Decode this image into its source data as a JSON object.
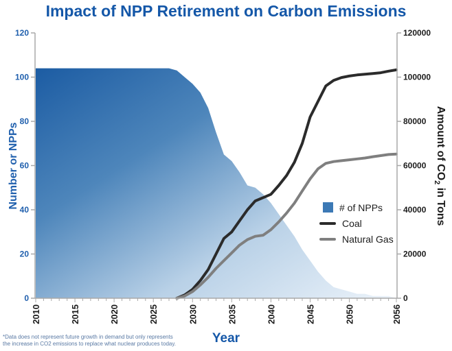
{
  "title": "Impact of NPP Retirement on Carbon Emissions",
  "footnote": {
    "line1": "*Data does not represent future growth in demand but only represents",
    "line2": "the increase in CO2 emissions to replace what nuclear produces today."
  },
  "colors": {
    "title": "#1457a8",
    "left_axis_text": "#1f5fad",
    "right_axis_text": "#1c1c1c",
    "axis_line": "#a8a8a8",
    "footnote": "#5878a3",
    "area_fill_dark": "#1c5ca3",
    "area_fill_light": "#ecf3fa",
    "coal_line": "#2b2b2b",
    "gas_line": "#7f7f7f",
    "legend_square": "#3c79b5"
  },
  "chart_data": {
    "type": "combo_area_line",
    "title": "Impact of NPP Retirement on Carbon Emissions",
    "xlabel": "Year",
    "ylabel_left": "Number or NPPs",
    "ylabel_right_pre": "Amount of CO",
    "ylabel_right_sub": "2",
    "ylabel_right_post": " in Tons",
    "left_ylim": [
      0,
      120
    ],
    "right_ylim": [
      0,
      120000
    ],
    "left_ticks": [
      0,
      20,
      40,
      60,
      80,
      100,
      120
    ],
    "right_ticks": [
      0,
      20000,
      40000,
      60000,
      80000,
      100000,
      120000
    ],
    "x_tick_labels": [
      2010,
      2015,
      2020,
      2025,
      2030,
      2035,
      2040,
      2045,
      2050,
      2056
    ],
    "grid": false,
    "legend_position": "inside-right",
    "area_gradient": [
      "#1c5ca3",
      "#4e86bb",
      "#b9d1e7",
      "#ecf3fa"
    ],
    "x": [
      2010,
      2011,
      2012,
      2013,
      2014,
      2015,
      2016,
      2017,
      2018,
      2019,
      2020,
      2021,
      2022,
      2023,
      2024,
      2025,
      2026,
      2027,
      2028,
      2029,
      2030,
      2031,
      2032,
      2033,
      2034,
      2035,
      2036,
      2037,
      2038,
      2039,
      2040,
      2041,
      2042,
      2043,
      2044,
      2045,
      2046,
      2047,
      2048,
      2049,
      2050,
      2051,
      2052,
      2053,
      2054,
      2055,
      2056
    ],
    "series": [
      {
        "name": "# of NPPs",
        "type": "area",
        "axis": "left",
        "color": "#3c79b5",
        "values": [
          104,
          104,
          104,
          104,
          104,
          104,
          104,
          104,
          104,
          104,
          104,
          104,
          104,
          104,
          104,
          104,
          104,
          104,
          103,
          100,
          97,
          93,
          86,
          75,
          65,
          62,
          57,
          51,
          50,
          47,
          43,
          38,
          33,
          28,
          22,
          17,
          12,
          8,
          5,
          4,
          3,
          2,
          2,
          1,
          1,
          1,
          0
        ]
      },
      {
        "name": "Coal",
        "type": "line",
        "axis": "right",
        "color": "#2b2b2b",
        "values": [
          null,
          null,
          null,
          null,
          null,
          null,
          null,
          null,
          null,
          null,
          null,
          null,
          null,
          null,
          null,
          null,
          null,
          null,
          0,
          1500,
          4000,
          8000,
          13000,
          20000,
          27000,
          30000,
          35000,
          40000,
          44000,
          45500,
          47000,
          51000,
          55500,
          61500,
          70000,
          82000,
          89000,
          96000,
          98500,
          99800,
          100500,
          101000,
          101300,
          101600,
          102000,
          102700,
          103300
        ]
      },
      {
        "name": "Natural Gas",
        "type": "line",
        "axis": "right",
        "color": "#7f7f7f",
        "values": [
          null,
          null,
          null,
          null,
          null,
          null,
          null,
          null,
          null,
          null,
          null,
          null,
          null,
          null,
          null,
          null,
          null,
          null,
          0,
          1000,
          3000,
          6000,
          9500,
          13500,
          17000,
          20500,
          24000,
          26500,
          28000,
          28500,
          31000,
          34500,
          38500,
          43000,
          48500,
          54000,
          58500,
          61000,
          61800,
          62200,
          62600,
          63000,
          63400,
          64000,
          64500,
          65000,
          65200
        ]
      }
    ]
  }
}
